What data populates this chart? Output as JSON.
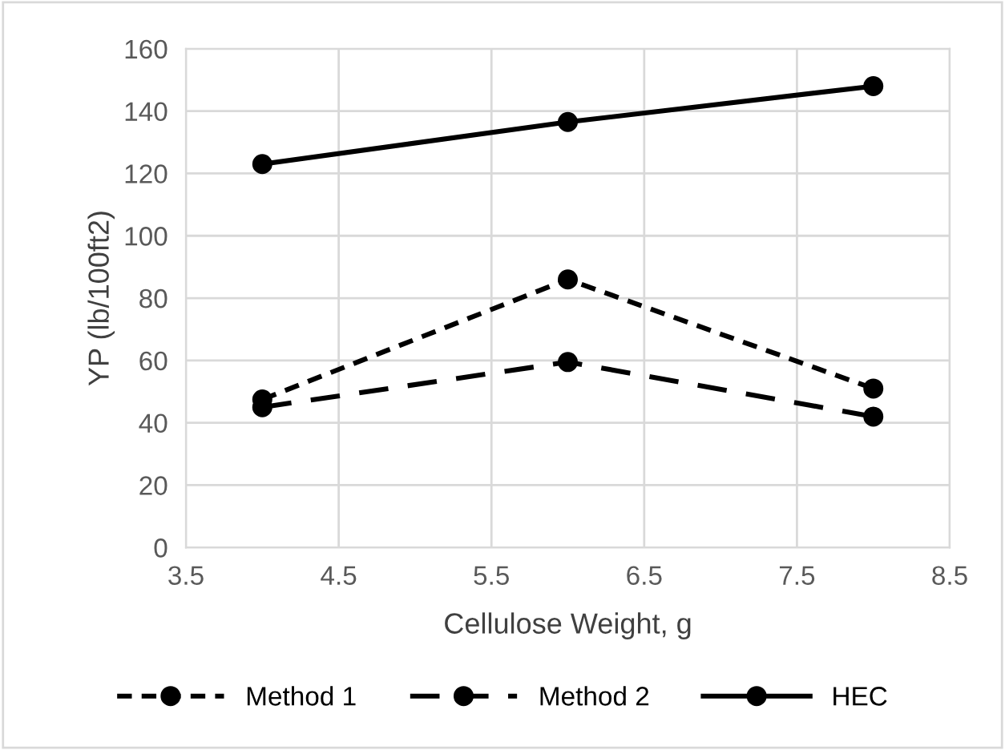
{
  "chart_data": {
    "type": "line",
    "xlabel": "Cellulose Weight, g",
    "ylabel": "YP (lb/100ft2)",
    "x": [
      4,
      6,
      8
    ],
    "series": [
      {
        "name": "Method 1",
        "color": "#000000",
        "values": [
          47.5,
          86,
          51
        ],
        "line_style": "dotted"
      },
      {
        "name": "Method 2",
        "color": "#000000",
        "values": [
          45,
          59.5,
          42
        ],
        "line_style": "dashed"
      },
      {
        "name": "HEC",
        "color": "#000000",
        "values": [
          123,
          136.5,
          148
        ],
        "line_style": "solid"
      }
    ],
    "xlim": [
      3.5,
      8.5
    ],
    "xticks": [
      3.5,
      4.5,
      5.5,
      6.5,
      7.5,
      8.5
    ],
    "ylim": [
      0,
      160
    ],
    "yticks": [
      0,
      20,
      40,
      60,
      80,
      100,
      120,
      140,
      160
    ],
    "grid": true,
    "legend": "bottom",
    "marker": "circle"
  }
}
